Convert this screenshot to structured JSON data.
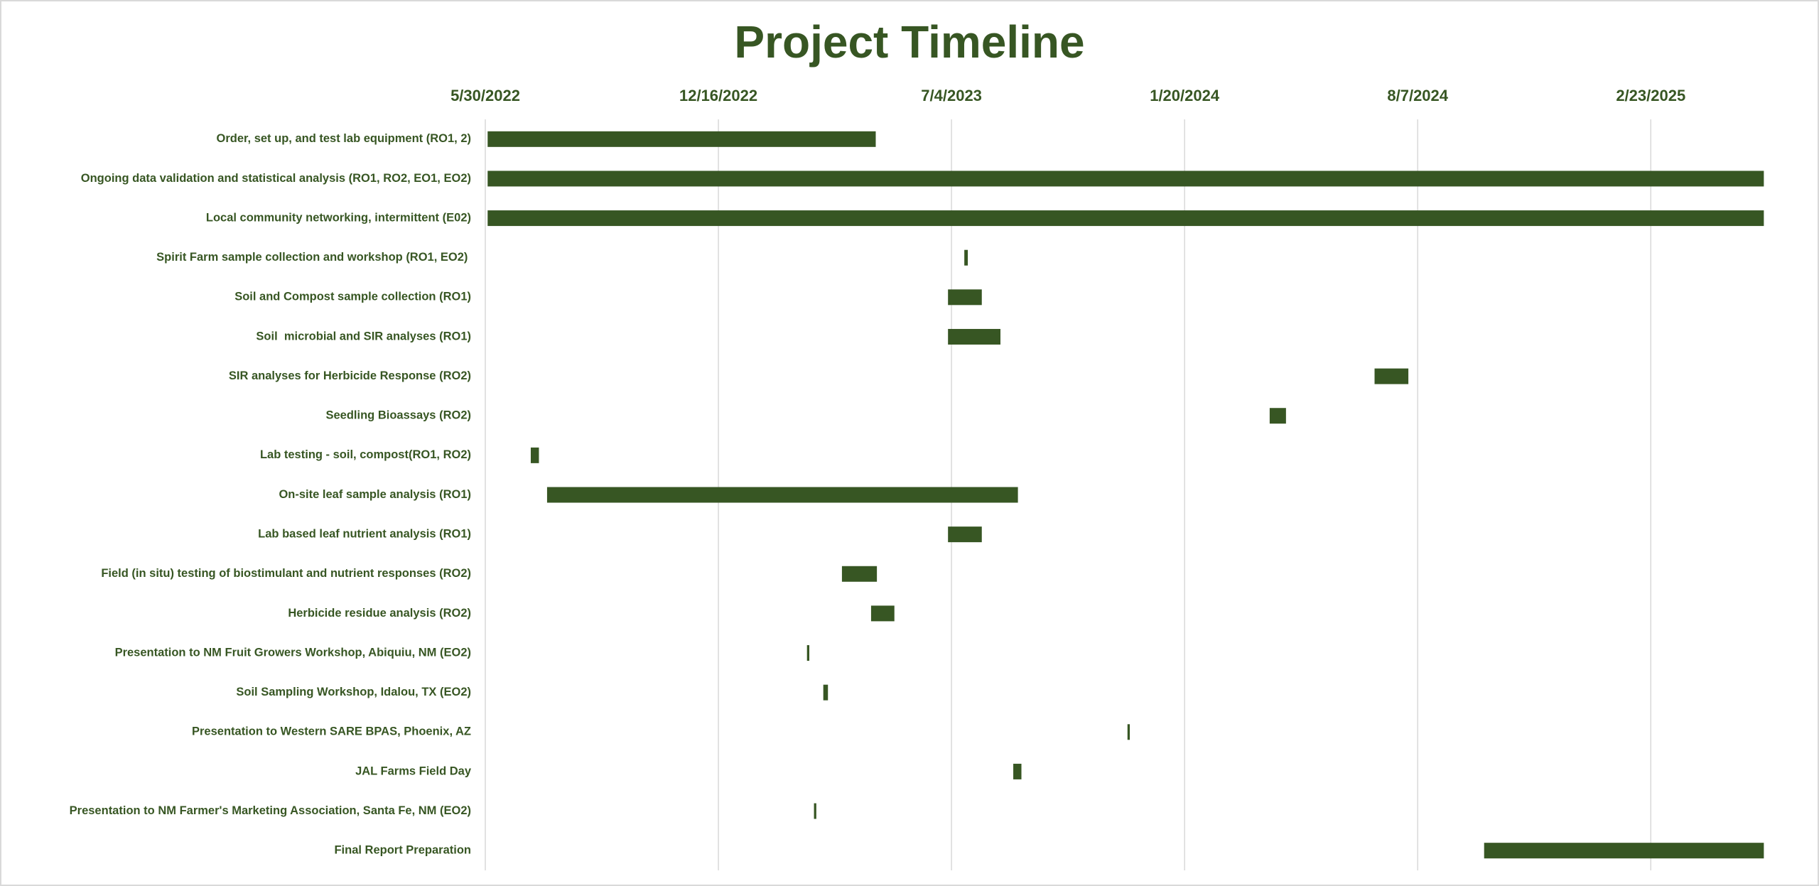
{
  "chart_data": {
    "type": "gantt",
    "title": "Project Timeline",
    "categories": [
      "Order, set up, and test lab equipment (RO1, 2)",
      "Ongoing data validation and statistical analysis (RO1, RO2, EO1, EO2)",
      "Local community networking, intermittent (E02)",
      "Spirit Farm sample collection and workshop (RO1, EO2) ",
      "Soil and Compost sample collection (RO1)",
      "Soil  microbial and SIR analyses (RO1)",
      "SIR analyses for Herbicide Response (RO2)",
      "Seedling Bioassays (RO2)",
      "Lab testing - soil, compost(RO1, RO2)",
      "On-site leaf sample analysis (RO1)",
      "Lab based leaf nutrient analysis (RO1)",
      "Field (in situ) testing of biostimulant and nutrient responses (RO2)",
      "Herbicide residue analysis (RO2)",
      "Presentation to NM Fruit Growers Workshop, Abiquiu, NM (EO2)",
      "Soil Sampling Workshop, Idalou, TX (EO2)",
      "Presentation to Western SARE BPAS, Phoenix, AZ",
      "JAL Farms Field Day",
      "Presentation to NM Farmer's Marketing Association, Santa Fe, NM (EO2)",
      "Final Report Preparation"
    ],
    "start": [
      "6/1/2022",
      "6/1/2022",
      "6/1/2022",
      "7/15/2023",
      "7/1/2023",
      "7/1/2023",
      "7/1/2024",
      "4/2/2024",
      "7/8/2022",
      "7/22/2022",
      "7/1/2023",
      "4/1/2023",
      "4/26/2023",
      "3/2/2023",
      "3/16/2023",
      "12/2/2023",
      "8/26/2023",
      "3/8/2023",
      "10/3/2024"
    ],
    "end": [
      "4/30/2023",
      "5/31/2025",
      "5/31/2025",
      "7/18/2023",
      "7/30/2023",
      "8/15/2023",
      "7/30/2024",
      "4/16/2024",
      "7/15/2022",
      "8/30/2023",
      "7/30/2023",
      "5/1/2023",
      "5/16/2023",
      "3/4/2023",
      "3/20/2023",
      "12/4/2023",
      "9/2/2023",
      "3/10/2023",
      "5/31/2025"
    ],
    "color": "#375623",
    "xlim": [
      "5/30/2022",
      "6/1/2025"
    ],
    "xticks": [
      "5/30/2022",
      "12/16/2022",
      "7/4/2023",
      "1/20/2024",
      "8/7/2024",
      "2/23/2025"
    ],
    "grid": true
  }
}
